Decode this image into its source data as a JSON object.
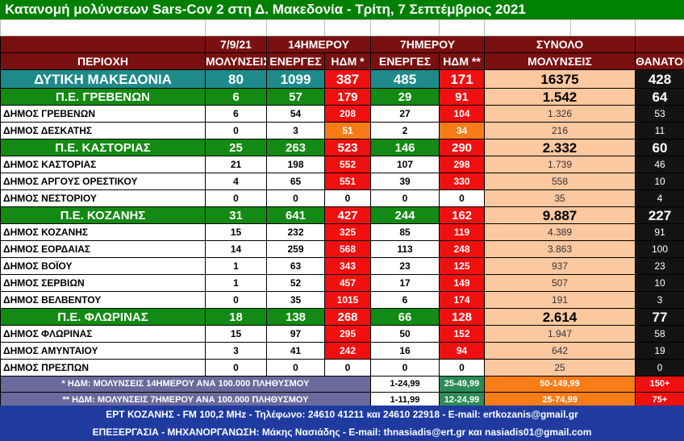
{
  "title": "Κατανομή μολύνσεων Sars-Cov 2 στη Δ. Μακεδονία - Τρίτη, 7 Σεπτέμβριος 2021",
  "groups": {
    "date": "7/9/21",
    "d14": "14ΗΜΕΡΟΥ",
    "d7": "7ΗΜΕΡΟΥ",
    "total": "ΣΥΝΟΛΟ"
  },
  "headers": {
    "region": "ΠΕΡΙΟΧΗ",
    "cases": "ΜΟΛΥΝΣΕΙΣ",
    "active14": "ΕΝΕΡΓΕΣ",
    "hdm14": "ΗΔΜ *",
    "active7": "ΕΝΕΡΓΕΣ",
    "hdm7": "ΗΔΜ **",
    "total_cases": "ΜΟΛΥΝΣΕΙΣ",
    "deaths": "ΘΑΝΑΤΟΙ"
  },
  "rows": [
    {
      "type": "total",
      "name": "ΔΥΤΙΚΗ ΜΑΚΕΔΟΝΙΑ",
      "cases": "80",
      "active14": "1099",
      "hdm14": "387",
      "active7": "485",
      "hdm7": "171",
      "total": "16375",
      "deaths": "428",
      "c14": "red",
      "c7": "red"
    },
    {
      "type": "pe",
      "name": "Π.Ε. ΓΡΕΒΕΝΩΝ",
      "cases": "6",
      "active14": "57",
      "hdm14": "179",
      "active7": "29",
      "hdm7": "91",
      "total": "1.542",
      "deaths": "64",
      "c14": "red",
      "c7": "red"
    },
    {
      "type": "dm",
      "name": "ΔΗΜΟΣ ΓΡΕΒΕΝΩΝ",
      "cases": "6",
      "active14": "54",
      "hdm14": "208",
      "active7": "27",
      "hdm7": "104",
      "total": "1.326",
      "deaths": "53",
      "c14": "red",
      "c7": "red"
    },
    {
      "type": "dm",
      "name": "ΔΗΜΟΣ ΔΕΣΚΑΤΗΣ",
      "cases": "0",
      "active14": "3",
      "hdm14": "51",
      "active7": "2",
      "hdm7": "34",
      "total": "216",
      "deaths": "11",
      "c14": "orange",
      "c7": "orange"
    },
    {
      "type": "pe",
      "name": "Π.Ε. ΚΑΣΤΟΡΙΑΣ",
      "cases": "25",
      "active14": "263",
      "hdm14": "523",
      "active7": "146",
      "hdm7": "290",
      "total": "2.332",
      "deaths": "60",
      "c14": "red",
      "c7": "red"
    },
    {
      "type": "dm",
      "name": "ΔΗΜΟΣ ΚΑΣΤΟΡΙΑΣ",
      "cases": "21",
      "active14": "198",
      "hdm14": "552",
      "active7": "107",
      "hdm7": "298",
      "total": "1.739",
      "deaths": "46",
      "c14": "red",
      "c7": "red"
    },
    {
      "type": "dm",
      "name": "ΔΗΜΟΣ ΑΡΓΟΥΣ ΟΡΕΣΤΙΚΟΥ",
      "cases": "4",
      "active14": "65",
      "hdm14": "551",
      "active7": "39",
      "hdm7": "330",
      "total": "558",
      "deaths": "10",
      "c14": "red",
      "c7": "red"
    },
    {
      "type": "dm",
      "name": "ΔΗΜΟΣ ΝΕΣΤΟΡΙΟΥ",
      "cases": "0",
      "active14": "0",
      "hdm14": "0",
      "active7": "0",
      "hdm7": "0",
      "total": "35",
      "deaths": "4",
      "c14": "",
      "c7": ""
    },
    {
      "type": "pe",
      "name": "Π.Ε. ΚΟΖΑΝΗΣ",
      "cases": "31",
      "active14": "641",
      "hdm14": "427",
      "active7": "244",
      "hdm7": "162",
      "total": "9.887",
      "deaths": "227",
      "c14": "red",
      "c7": "red"
    },
    {
      "type": "dm",
      "name": "ΔΗΜΟΣ ΚΟΖΑΝΗΣ",
      "cases": "15",
      "active14": "232",
      "hdm14": "325",
      "active7": "85",
      "hdm7": "119",
      "total": "4.389",
      "deaths": "91",
      "c14": "red",
      "c7": "red"
    },
    {
      "type": "dm",
      "name": "ΔΗΜΟΣ ΕΟΡΔΑΙΑΣ",
      "cases": "14",
      "active14": "259",
      "hdm14": "568",
      "active7": "113",
      "hdm7": "248",
      "total": "3.863",
      "deaths": "100",
      "c14": "red",
      "c7": "red"
    },
    {
      "type": "dm",
      "name": "ΔΗΜΟΣ ΒΟΪΟΥ",
      "cases": "1",
      "active14": "63",
      "hdm14": "343",
      "active7": "23",
      "hdm7": "125",
      "total": "937",
      "deaths": "23",
      "c14": "red",
      "c7": "red"
    },
    {
      "type": "dm",
      "name": "ΔΗΜΟΣ ΣΕΡΒΙΩΝ",
      "cases": "1",
      "active14": "52",
      "hdm14": "457",
      "active7": "17",
      "hdm7": "149",
      "total": "507",
      "deaths": "10",
      "c14": "red",
      "c7": "red"
    },
    {
      "type": "dm",
      "name": "ΔΗΜΟΣ ΒΕΛΒΕΝΤΟΥ",
      "cases": "0",
      "active14": "35",
      "hdm14": "1015",
      "active7": "6",
      "hdm7": "174",
      "total": "191",
      "deaths": "3",
      "c14": "red",
      "c7": "red"
    },
    {
      "type": "pe",
      "name": "Π.Ε. ΦΛΩΡΙΝΑΣ",
      "cases": "18",
      "active14": "138",
      "hdm14": "268",
      "active7": "66",
      "hdm7": "128",
      "total": "2.614",
      "deaths": "77",
      "c14": "red",
      "c7": "red"
    },
    {
      "type": "dm",
      "name": "ΔΗΜΟΣ ΦΛΩΡΙΝΑΣ",
      "cases": "15",
      "active14": "97",
      "hdm14": "295",
      "active7": "50",
      "hdm7": "152",
      "total": "1.947",
      "deaths": "58",
      "c14": "red",
      "c7": "red"
    },
    {
      "type": "dm",
      "name": "ΔΗΜΟΣ ΑΜΥΝΤΑΙΟΥ",
      "cases": "3",
      "active14": "41",
      "hdm14": "242",
      "active7": "16",
      "hdm7": "94",
      "total": "642",
      "deaths": "19",
      "c14": "red",
      "c7": "red"
    },
    {
      "type": "dm",
      "name": "ΔΗΜΟΣ ΠΡΕΣΠΩΝ",
      "cases": "0",
      "active14": "0",
      "hdm14": "0",
      "active7": "0",
      "hdm7": "0",
      "total": "25",
      "deaths": "0",
      "c14": "",
      "c7": ""
    }
  ],
  "legend": [
    {
      "text": "* ΗΔΜ: ΜΟΛΥΝΣΕΙΣ 14ΗΜΕΡΟΥ ΑΝΑ 100.000 ΠΛΗΘΥΣΜΟΥ",
      "ranges": [
        "1-24,99",
        "25-49,99",
        "50-149,99",
        "150+"
      ]
    },
    {
      "text": "** ΗΔΜ: ΜΟΛΥΝΣΕΙΣ 7ΗΜΕΡΟΥ ΑΝΑ 100.000 ΠΛΗΘΥΣΜΟΥ",
      "ranges": [
        "1-11,99",
        "12-24,99",
        "25-74,99",
        "75+"
      ]
    }
  ],
  "footer": {
    "line1": "ΕΡΤ ΚΟΖΑΝΗΣ - FM 100,2 MHz - Τηλέφωνο:  24610 41211 και 24610 22918 - E-mail: ertkozanis@gmail.gr",
    "line2": "ΕΠΕΞΕΡΓΑΣΙΑ  -  ΜΗΧΑΝΟΡΓΑΝΩΣΗ: Μάκης Νασιάδης  -  E-mail: thnasiadis@ert.gr και nasiadis01@gmail.com"
  },
  "colors": {
    "title_bg": "#008000",
    "header_bg": "#7a1010",
    "region_total_bg": "#1e8a8a",
    "pe_bg": "#138a13",
    "red": "#f01010",
    "orange": "#f77c18",
    "peach": "#fbc8a0",
    "dark": "#141414",
    "legend_bg": "#6a6a9c",
    "footer_bg": "#1f3ba0"
  }
}
